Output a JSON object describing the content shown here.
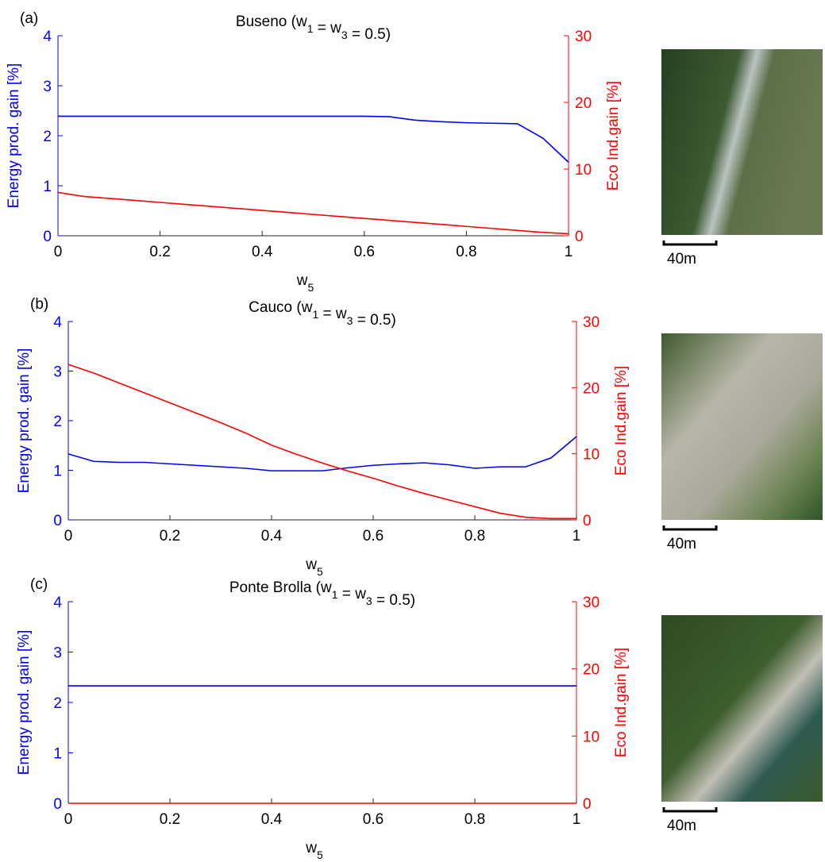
{
  "chart_data": [
    {
      "type": "line",
      "panel_label": "(a)",
      "title": "Buseno (w1 = w3 = 0.5)",
      "x_label": "w5",
      "y_label": "Energy prod. gain [%]",
      "y2_label": "Eco Ind.gain [%]",
      "scale_label": "40m",
      "x": [
        0,
        0.05,
        0.1,
        0.15,
        0.2,
        0.25,
        0.3,
        0.35,
        0.4,
        0.45,
        0.5,
        0.55,
        0.6,
        0.65,
        0.7,
        0.75,
        0.8,
        0.85,
        0.9,
        0.95,
        1
      ],
      "series": [
        {
          "color": "#0000ff",
          "values": [
            2.39,
            2.39,
            2.39,
            2.39,
            2.39,
            2.39,
            2.39,
            2.39,
            2.39,
            2.39,
            2.39,
            2.39,
            2.39,
            2.38,
            2.31,
            2.28,
            2.26,
            2.25,
            2.24,
            1.95,
            1.47
          ]
        },
        {
          "color": "#ff0000",
          "axis": "y2",
          "values": [
            6.5,
            5.9,
            5.6,
            5.3,
            5.0,
            4.7,
            4.4,
            4.1,
            3.8,
            3.5,
            3.2,
            2.9,
            2.6,
            2.3,
            2.0,
            1.7,
            1.4,
            1.1,
            0.8,
            0.5,
            0.3
          ]
        }
      ],
      "xlim": [
        0,
        1
      ],
      "xticks": [
        0,
        0.2,
        0.4,
        0.6,
        0.8,
        1
      ],
      "ylim": [
        0,
        4
      ],
      "yticks": [
        0,
        1,
        2,
        3,
        4
      ],
      "y2lim": [
        0,
        30
      ],
      "y2ticks": [
        0,
        10,
        20,
        30
      ]
    },
    {
      "type": "line",
      "panel_label": "(b)",
      "title": "Cauco (w1 = w3 = 0.5)",
      "x_label": "w5",
      "y_label": "Energy prod. gain [%]",
      "y2_label": "Eco Ind.gain [%]",
      "scale_label": "40m",
      "x": [
        0,
        0.05,
        0.1,
        0.15,
        0.2,
        0.25,
        0.3,
        0.35,
        0.4,
        0.45,
        0.5,
        0.55,
        0.6,
        0.65,
        0.7,
        0.75,
        0.8,
        0.85,
        0.9,
        0.95,
        1
      ],
      "series": [
        {
          "color": "#0000ff",
          "values": [
            1.33,
            1.18,
            1.16,
            1.16,
            1.13,
            1.1,
            1.07,
            1.04,
            0.99,
            0.99,
            0.99,
            1.05,
            1.1,
            1.13,
            1.15,
            1.11,
            1.04,
            1.07,
            1.07,
            1.25,
            1.68
          ]
        },
        {
          "color": "#ff0000",
          "axis": "y2",
          "values": [
            23.5,
            22.2,
            20.7,
            19.2,
            17.7,
            16.2,
            14.7,
            13.1,
            11.3,
            9.9,
            8.6,
            7.4,
            6.3,
            5.1,
            4.0,
            3.0,
            2.0,
            1.0,
            0.4,
            0.2,
            0.2
          ]
        }
      ],
      "xlim": [
        0,
        1
      ],
      "xticks": [
        0,
        0.2,
        0.4,
        0.6,
        0.8,
        1
      ],
      "ylim": [
        0,
        4
      ],
      "yticks": [
        0,
        1,
        2,
        3,
        4
      ],
      "y2lim": [
        0,
        30
      ],
      "y2ticks": [
        0,
        10,
        20,
        30
      ]
    },
    {
      "type": "line",
      "panel_label": "(c)",
      "title": "Ponte Brolla (w1 = w3 = 0.5)",
      "x_label": "w5",
      "y_label": "Energy prod. gain [%]",
      "y2_label": "Eco Ind.gain [%]",
      "scale_label": "40m",
      "x": [
        0,
        1
      ],
      "series": [
        {
          "color": "#0000ff",
          "values": [
            2.33,
            2.33
          ]
        },
        {
          "color": "#ff0000",
          "axis": "y2",
          "values": [
            0,
            0
          ]
        }
      ],
      "xlim": [
        0,
        1
      ],
      "xticks": [
        0,
        0.2,
        0.4,
        0.6,
        0.8,
        1
      ],
      "ylim": [
        0,
        4
      ],
      "yticks": [
        0,
        1,
        2,
        3,
        4
      ],
      "y2lim": [
        0,
        30
      ],
      "y2ticks": [
        0,
        10,
        20,
        30
      ]
    }
  ]
}
